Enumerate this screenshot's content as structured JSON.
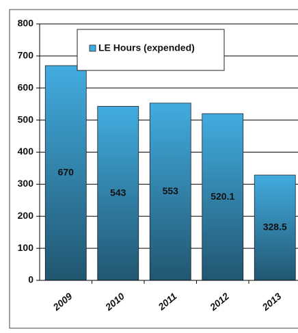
{
  "chart_data": {
    "type": "bar",
    "categories": [
      "2009",
      "2010",
      "2011",
      "2012",
      "2013"
    ],
    "series": [
      {
        "name": "LE Hours (expended)",
        "color": "#42ace0",
        "values": [
          670,
          543,
          553,
          520.1,
          328.5
        ]
      }
    ],
    "ylim": [
      0,
      800
    ],
    "yticks": [
      0,
      100,
      200,
      300,
      400,
      500,
      600,
      700,
      800
    ],
    "grid": true,
    "legend": "top"
  }
}
